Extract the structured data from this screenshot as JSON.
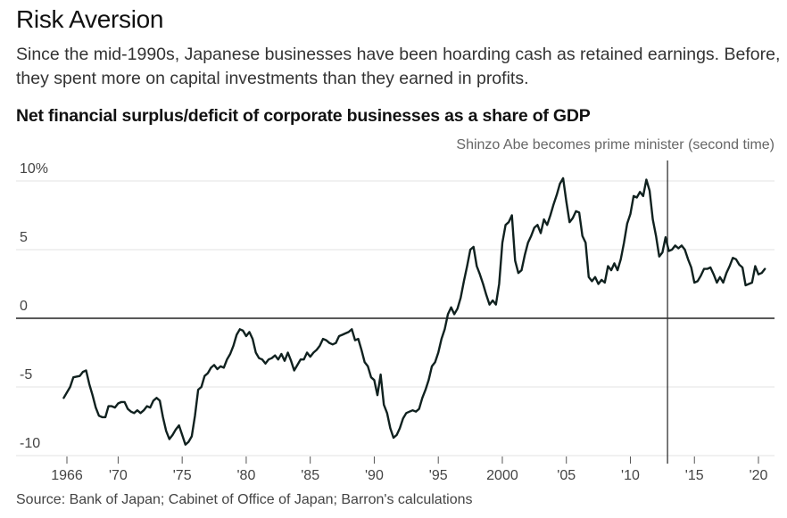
{
  "header": {
    "title": "Risk Aversion",
    "subtitle": "Since the mid-1990s, Japanese businesses have been hoarding cash as retained earnings. Before, they spent more on capital investments than they earned in profits."
  },
  "source": "Source: Bank of Japan; Cabinet of Office of Japan; Barron's calculations",
  "colors": {
    "line": "#10211f",
    "grid": "#e3e3e3",
    "zero": "#222222",
    "marker": "#333333"
  },
  "chart_data": {
    "type": "line",
    "title": "Net financial surplus/deficit of corporate businesses as a share of GDP",
    "xlabel": "",
    "ylabel": "",
    "xlim": [
      1963.5,
      2021.5
    ],
    "ylim": [
      -11,
      10.5
    ],
    "y_ticks": [
      {
        "value": 10,
        "label": "10%"
      },
      {
        "value": 5,
        "label": "5"
      },
      {
        "value": 0,
        "label": "0"
      },
      {
        "value": -5,
        "label": "-5"
      },
      {
        "value": -10,
        "label": "-10"
      }
    ],
    "x_ticks": [
      {
        "value": 1966,
        "label": "1966"
      },
      {
        "value": 1970,
        "label": "'70"
      },
      {
        "value": 1975,
        "label": "'75"
      },
      {
        "value": 1980,
        "label": "'80"
      },
      {
        "value": 1985,
        "label": "'85"
      },
      {
        "value": 1990,
        "label": "'90"
      },
      {
        "value": 1995,
        "label": "'95"
      },
      {
        "value": 2000,
        "label": "2000"
      },
      {
        "value": 2005,
        "label": "'05"
      },
      {
        "value": 2010,
        "label": "'10"
      },
      {
        "value": 2015,
        "label": "'15"
      },
      {
        "value": 2020,
        "label": "'20"
      }
    ],
    "annotation": {
      "x": 2012.9,
      "label": "Shinzo Abe becomes prime minister (second time)"
    },
    "series": [
      {
        "name": "Net financial surplus/deficit",
        "points": [
          [
            1965.75,
            -5.8
          ],
          [
            1966.25,
            -5.0
          ],
          [
            1966.5,
            -4.3
          ],
          [
            1967.0,
            -4.2
          ],
          [
            1967.25,
            -3.9
          ],
          [
            1967.5,
            -3.8
          ],
          [
            1967.75,
            -4.8
          ],
          [
            1968.0,
            -5.6
          ],
          [
            1968.25,
            -6.5
          ],
          [
            1968.5,
            -7.1
          ],
          [
            1968.75,
            -7.2
          ],
          [
            1969.0,
            -7.2
          ],
          [
            1969.25,
            -6.4
          ],
          [
            1969.5,
            -6.4
          ],
          [
            1969.75,
            -6.5
          ],
          [
            1970.0,
            -6.2
          ],
          [
            1970.25,
            -6.1
          ],
          [
            1970.5,
            -6.1
          ],
          [
            1970.75,
            -6.6
          ],
          [
            1971.0,
            -6.8
          ],
          [
            1971.25,
            -6.9
          ],
          [
            1971.5,
            -6.7
          ],
          [
            1971.75,
            -6.9
          ],
          [
            1972.0,
            -6.7
          ],
          [
            1972.25,
            -6.4
          ],
          [
            1972.5,
            -6.5
          ],
          [
            1972.75,
            -6.0
          ],
          [
            1973.0,
            -5.8
          ],
          [
            1973.25,
            -6.0
          ],
          [
            1973.5,
            -7.2
          ],
          [
            1973.75,
            -8.2
          ],
          [
            1974.0,
            -8.8
          ],
          [
            1974.25,
            -8.5
          ],
          [
            1974.5,
            -8.1
          ],
          [
            1974.75,
            -7.8
          ],
          [
            1975.0,
            -8.5
          ],
          [
            1975.25,
            -9.2
          ],
          [
            1975.5,
            -9.0
          ],
          [
            1975.75,
            -8.6
          ],
          [
            1976.0,
            -7.1
          ],
          [
            1976.25,
            -5.2
          ],
          [
            1976.5,
            -5.0
          ],
          [
            1976.75,
            -4.2
          ],
          [
            1977.0,
            -4.0
          ],
          [
            1977.25,
            -3.6
          ],
          [
            1977.5,
            -3.4
          ],
          [
            1977.75,
            -3.7
          ],
          [
            1978.0,
            -3.5
          ],
          [
            1978.25,
            -3.6
          ],
          [
            1978.5,
            -3.0
          ],
          [
            1978.75,
            -2.6
          ],
          [
            1979.0,
            -2.0
          ],
          [
            1979.25,
            -1.2
          ],
          [
            1979.5,
            -0.8
          ],
          [
            1979.75,
            -0.9
          ],
          [
            1980.0,
            -1.3
          ],
          [
            1980.25,
            -1.0
          ],
          [
            1980.5,
            -1.5
          ],
          [
            1980.75,
            -2.5
          ],
          [
            1981.0,
            -2.9
          ],
          [
            1981.25,
            -3.0
          ],
          [
            1981.5,
            -3.3
          ],
          [
            1981.75,
            -3.0
          ],
          [
            1982.0,
            -2.9
          ],
          [
            1982.25,
            -2.7
          ],
          [
            1982.5,
            -3.0
          ],
          [
            1982.75,
            -2.6
          ],
          [
            1983.0,
            -3.1
          ],
          [
            1983.25,
            -2.5
          ],
          [
            1983.5,
            -3.1
          ],
          [
            1983.75,
            -3.8
          ],
          [
            1984.0,
            -3.4
          ],
          [
            1984.25,
            -3.0
          ],
          [
            1984.5,
            -3.0
          ],
          [
            1984.75,
            -2.5
          ],
          [
            1985.0,
            -2.8
          ],
          [
            1985.25,
            -2.5
          ],
          [
            1985.5,
            -2.3
          ],
          [
            1985.75,
            -2.0
          ],
          [
            1986.0,
            -1.5
          ],
          [
            1986.25,
            -1.6
          ],
          [
            1986.5,
            -1.8
          ],
          [
            1986.75,
            -1.9
          ],
          [
            1987.0,
            -1.8
          ],
          [
            1987.25,
            -1.3
          ],
          [
            1987.5,
            -1.2
          ],
          [
            1987.75,
            -1.1
          ],
          [
            1988.0,
            -1.0
          ],
          [
            1988.25,
            -0.8
          ],
          [
            1988.5,
            -1.6
          ],
          [
            1988.75,
            -1.5
          ],
          [
            1989.0,
            -2.3
          ],
          [
            1989.25,
            -3.2
          ],
          [
            1989.5,
            -3.5
          ],
          [
            1989.75,
            -4.3
          ],
          [
            1990.0,
            -4.5
          ],
          [
            1990.25,
            -5.6
          ],
          [
            1990.5,
            -4.1
          ],
          [
            1990.75,
            -6.3
          ],
          [
            1991.0,
            -6.9
          ],
          [
            1991.25,
            -8.0
          ],
          [
            1991.5,
            -8.7
          ],
          [
            1991.75,
            -8.5
          ],
          [
            1992.0,
            -8.0
          ],
          [
            1992.25,
            -7.3
          ],
          [
            1992.5,
            -6.9
          ],
          [
            1992.75,
            -6.8
          ],
          [
            1993.0,
            -6.7
          ],
          [
            1993.25,
            -6.8
          ],
          [
            1993.5,
            -6.6
          ],
          [
            1993.75,
            -5.8
          ],
          [
            1994.0,
            -5.2
          ],
          [
            1994.25,
            -4.5
          ],
          [
            1994.5,
            -3.5
          ],
          [
            1994.75,
            -3.2
          ],
          [
            1995.0,
            -2.5
          ],
          [
            1995.25,
            -1.5
          ],
          [
            1995.5,
            -0.8
          ],
          [
            1995.75,
            0.3
          ],
          [
            1996.0,
            0.8
          ],
          [
            1996.25,
            0.3
          ],
          [
            1996.5,
            0.7
          ],
          [
            1996.75,
            1.5
          ],
          [
            1997.0,
            2.7
          ],
          [
            1997.25,
            3.8
          ],
          [
            1997.5,
            5.0
          ],
          [
            1997.75,
            5.2
          ],
          [
            1998.0,
            3.8
          ],
          [
            1998.25,
            3.2
          ],
          [
            1998.5,
            2.5
          ],
          [
            1998.75,
            1.7
          ],
          [
            1999.0,
            1.0
          ],
          [
            1999.25,
            1.3
          ],
          [
            1999.5,
            1.0
          ],
          [
            1999.75,
            2.5
          ],
          [
            2000.0,
            5.5
          ],
          [
            2000.25,
            6.8
          ],
          [
            2000.5,
            7.0
          ],
          [
            2000.75,
            7.5
          ],
          [
            2001.0,
            4.2
          ],
          [
            2001.25,
            3.3
          ],
          [
            2001.5,
            3.5
          ],
          [
            2001.75,
            4.6
          ],
          [
            2002.0,
            5.5
          ],
          [
            2002.25,
            6.0
          ],
          [
            2002.5,
            6.6
          ],
          [
            2002.75,
            6.8
          ],
          [
            2003.0,
            6.2
          ],
          [
            2003.25,
            7.2
          ],
          [
            2003.5,
            6.8
          ],
          [
            2003.75,
            7.5
          ],
          [
            2004.0,
            8.3
          ],
          [
            2004.25,
            9.0
          ],
          [
            2004.5,
            9.8
          ],
          [
            2004.75,
            10.2
          ],
          [
            2005.0,
            8.5
          ],
          [
            2005.25,
            7.0
          ],
          [
            2005.5,
            7.3
          ],
          [
            2005.75,
            7.8
          ],
          [
            2006.0,
            7.7
          ],
          [
            2006.25,
            6.0
          ],
          [
            2006.5,
            5.5
          ],
          [
            2006.75,
            3.0
          ],
          [
            2007.0,
            2.7
          ],
          [
            2007.25,
            3.0
          ],
          [
            2007.5,
            2.5
          ],
          [
            2007.75,
            2.8
          ],
          [
            2008.0,
            2.6
          ],
          [
            2008.25,
            3.8
          ],
          [
            2008.5,
            3.5
          ],
          [
            2008.75,
            4.0
          ],
          [
            2009.0,
            3.5
          ],
          [
            2009.25,
            4.3
          ],
          [
            2009.5,
            5.5
          ],
          [
            2009.75,
            6.9
          ],
          [
            2010.0,
            7.6
          ],
          [
            2010.25,
            8.9
          ],
          [
            2010.5,
            8.8
          ],
          [
            2010.75,
            9.2
          ],
          [
            2011.0,
            8.9
          ],
          [
            2011.25,
            10.1
          ],
          [
            2011.5,
            9.3
          ],
          [
            2011.75,
            7.2
          ],
          [
            2012.0,
            6.0
          ],
          [
            2012.25,
            4.5
          ],
          [
            2012.5,
            4.8
          ],
          [
            2012.75,
            5.9
          ],
          [
            2013.0,
            4.9
          ],
          [
            2013.25,
            5.0
          ],
          [
            2013.5,
            5.3
          ],
          [
            2013.75,
            5.1
          ],
          [
            2014.0,
            5.3
          ],
          [
            2014.25,
            5.0
          ],
          [
            2014.5,
            4.3
          ],
          [
            2014.75,
            3.7
          ],
          [
            2015.0,
            2.6
          ],
          [
            2015.25,
            2.7
          ],
          [
            2015.5,
            3.1
          ],
          [
            2015.75,
            3.6
          ],
          [
            2016.0,
            3.6
          ],
          [
            2016.25,
            3.7
          ],
          [
            2016.5,
            3.2
          ],
          [
            2016.75,
            2.6
          ],
          [
            2017.0,
            3.0
          ],
          [
            2017.25,
            2.6
          ],
          [
            2017.5,
            3.3
          ],
          [
            2017.75,
            3.8
          ],
          [
            2018.0,
            4.4
          ],
          [
            2018.25,
            4.3
          ],
          [
            2018.5,
            3.9
          ],
          [
            2018.75,
            3.7
          ],
          [
            2019.0,
            2.4
          ],
          [
            2019.25,
            2.5
          ],
          [
            2019.5,
            2.6
          ],
          [
            2019.75,
            3.8
          ],
          [
            2020.0,
            3.2
          ],
          [
            2020.25,
            3.3
          ],
          [
            2020.5,
            3.6
          ]
        ]
      }
    ]
  }
}
